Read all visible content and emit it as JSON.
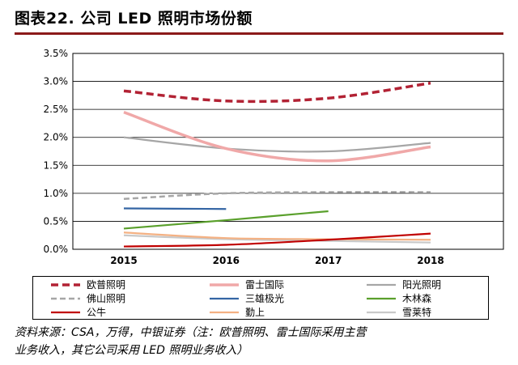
{
  "title": "图表22. 公司 LED 照明市场份额",
  "source": {
    "line1": "资料来源：CSA，万得，中银证券（注：欧普照明、雷士国际采用主营",
    "line2": "业务收入，其它公司采用 LED 照明业务收入）"
  },
  "colors": {
    "title_rule": "#8b1a1a"
  },
  "chart_data": {
    "type": "line",
    "title": "",
    "xlabel": "",
    "ylabel": "",
    "x": [
      "2015",
      "2016",
      "2017",
      "2018"
    ],
    "ylim": [
      0,
      0.035
    ],
    "yticks": [
      0,
      0.005,
      0.01,
      0.015,
      0.02,
      0.025,
      0.03,
      0.035
    ],
    "ytick_labels": [
      "0.0%",
      "0.5%",
      "1.0%",
      "1.5%",
      "2.0%",
      "2.5%",
      "3.0%",
      "3.5%"
    ],
    "grid": true,
    "legend_position": "bottom",
    "series": [
      {
        "name": "欧普照明",
        "values": [
          0.0283,
          0.0265,
          0.027,
          0.0297
        ],
        "color": "#b22234",
        "style": "dashed-thick"
      },
      {
        "name": "雷士国际",
        "values": [
          0.0245,
          0.018,
          0.0158,
          0.0183
        ],
        "color": "#f0a8a8",
        "style": "solid-thick"
      },
      {
        "name": "阳光照明",
        "values": [
          0.02,
          0.018,
          0.0175,
          0.019
        ],
        "color": "#a6a6a6",
        "style": "solid"
      },
      {
        "name": "佛山照明",
        "values": [
          0.009,
          0.01,
          0.0102,
          0.0102
        ],
        "color": "#a6a6a6",
        "style": "dashed"
      },
      {
        "name": "三雄极光",
        "values": [
          0.0073,
          0.0072,
          null,
          null
        ],
        "color": "#3465a4",
        "style": "solid"
      },
      {
        "name": "木林森",
        "values": [
          0.0037,
          0.0052,
          0.0068,
          null
        ],
        "color": "#5aa02c",
        "style": "solid"
      },
      {
        "name": "公牛",
        "values": [
          0.0005,
          0.0008,
          0.0017,
          0.0028
        ],
        "color": "#c00000",
        "style": "solid"
      },
      {
        "name": "勤上",
        "values": [
          0.003,
          0.002,
          0.0018,
          0.0017
        ],
        "color": "#f4b183",
        "style": "solid"
      },
      {
        "name": "雪莱特",
        "values": [
          0.0025,
          0.0018,
          0.0015,
          0.0012
        ],
        "color": "#c9c9c9",
        "style": "solid"
      }
    ]
  }
}
